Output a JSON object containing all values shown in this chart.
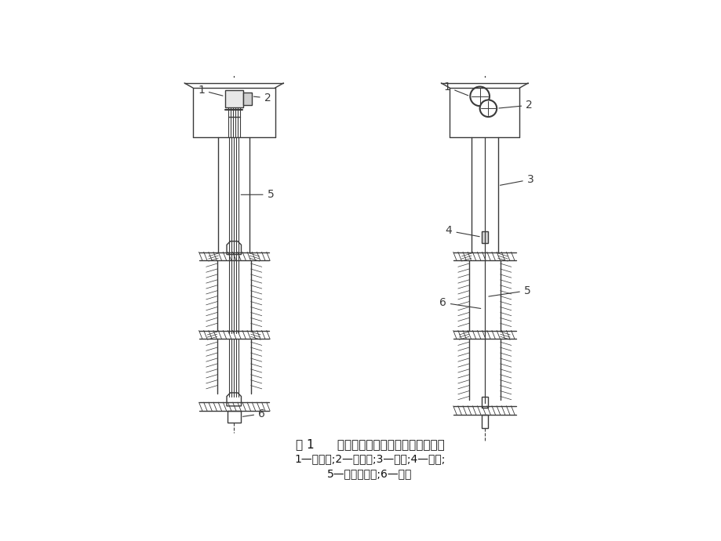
{
  "title_line1": "图 1      塔式多绳摩擦提升机罐笼提升系统",
  "title_line2": "1—提升机;2—导向轮;3—井塔;4—罐笼;",
  "title_line3": "5—提升钢丝绳;6—尾绳",
  "bg_color": "#ffffff",
  "line_color": "#3a3a3a",
  "label_color": "#222222",
  "font": "SimSun"
}
